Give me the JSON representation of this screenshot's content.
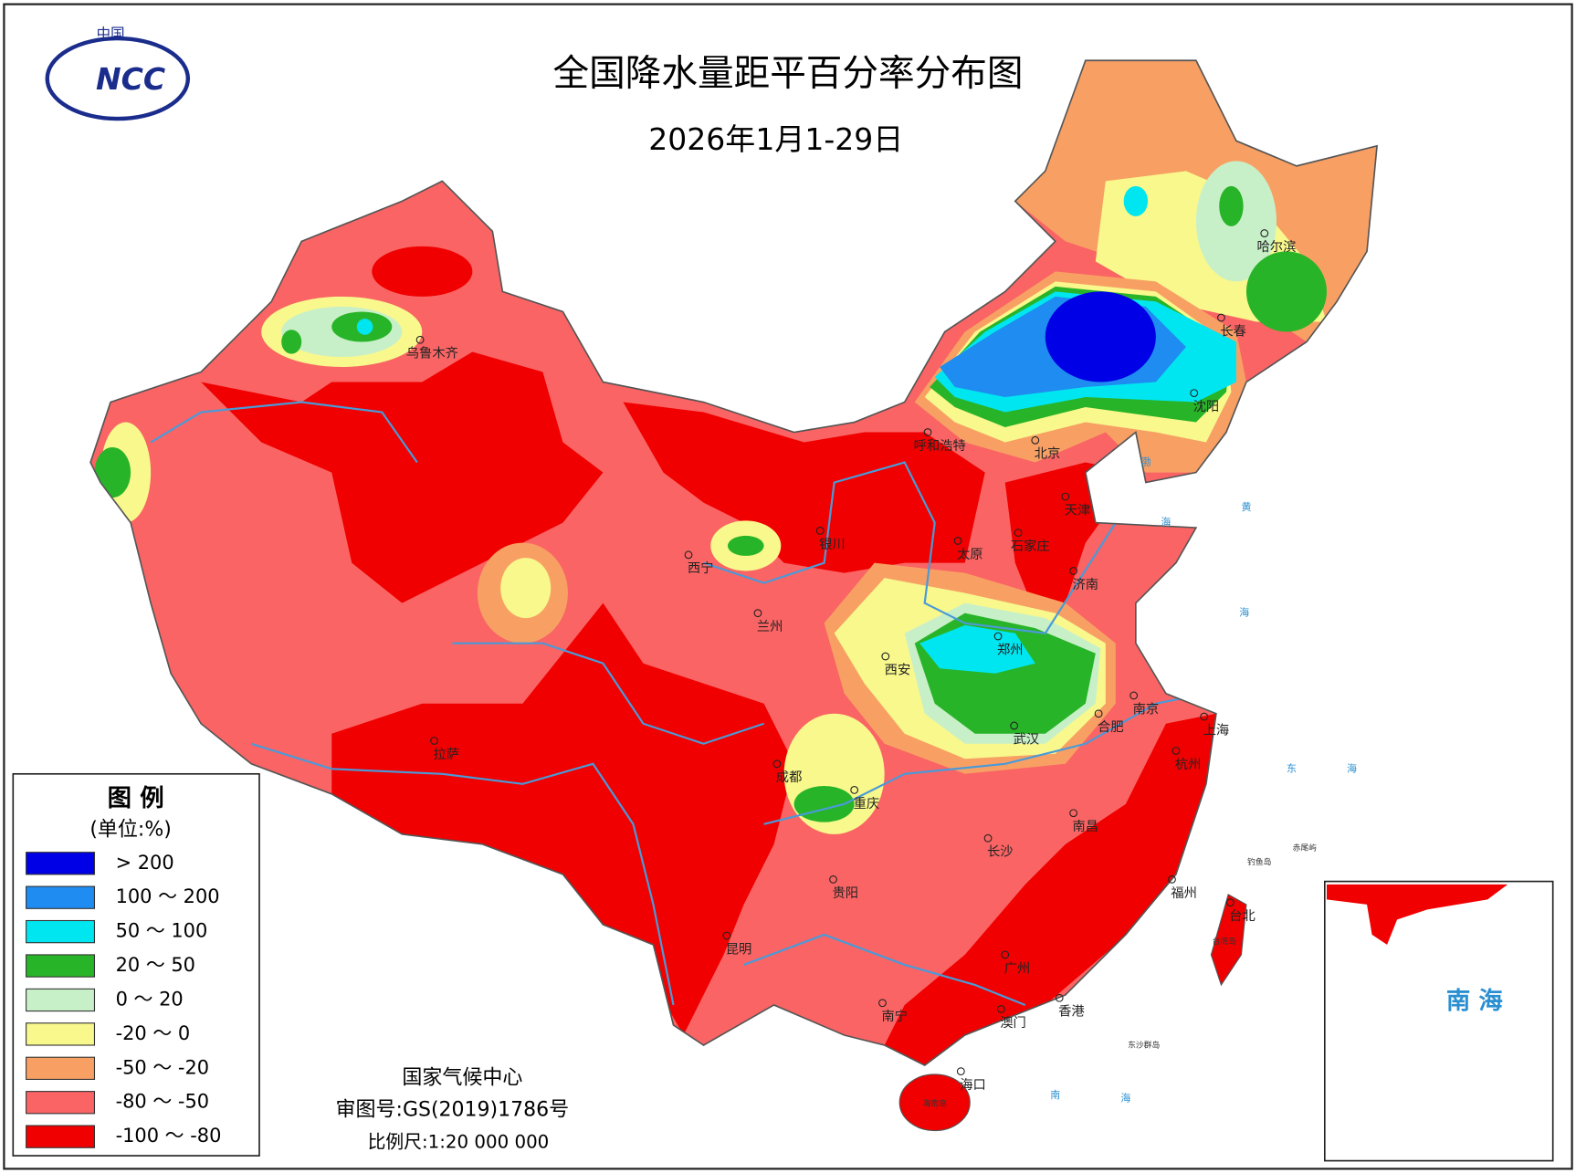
{
  "header": {
    "title": "全国降水量距平百分率分布图",
    "subtitle": "2026年1月1-29日"
  },
  "logo": {
    "country": "中国",
    "text": "NCC"
  },
  "legend": {
    "title": "图 例",
    "unit": "(单位:%)",
    "items": [
      {
        "label": "> 200",
        "color": "#0000e6"
      },
      {
        "label": "100 ～ 200",
        "color": "#1e8cf0"
      },
      {
        "label": "50 ～ 100",
        "color": "#00e6f0"
      },
      {
        "label": "20 ～ 50",
        "color": "#28b428"
      },
      {
        "label": "0 ～ 20",
        "color": "#c8f0c8"
      },
      {
        "label": "-20 ～ 0",
        "color": "#f8f88c"
      },
      {
        "label": "-50 ～ -20",
        "color": "#f8a064"
      },
      {
        "label": "-80 ～ -50",
        "color": "#fa6464"
      },
      {
        "label": "-100 ～ -80",
        "color": "#f00000"
      }
    ]
  },
  "cities": [
    "乌鲁木齐",
    "哈尔滨",
    "长春",
    "沈阳",
    "呼和浩特",
    "北京",
    "天津",
    "银川",
    "太原",
    "石家庄",
    "西宁",
    "兰州",
    "济南",
    "郑州",
    "西安",
    "南京",
    "合肥",
    "上海",
    "武汉",
    "拉萨",
    "成都",
    "杭州",
    "重庆",
    "南昌",
    "长沙",
    "贵阳",
    "福州",
    "台北",
    "昆明",
    "广州",
    "南宁",
    "香港",
    "澳门",
    "海口"
  ],
  "seas": [
    "渤",
    "海",
    "黄",
    "海",
    "东",
    "海",
    "南",
    "海"
  ],
  "islands": [
    "钓鱼岛",
    "赤尾屿",
    "东沙群岛",
    "台湾岛",
    "海南岛"
  ],
  "inset": {
    "label": "南 海"
  },
  "footer": {
    "agency": "国家气候中心",
    "approval": "审图号:GS(2019)1786号",
    "scale": "比例尺:1:20 000 000"
  }
}
